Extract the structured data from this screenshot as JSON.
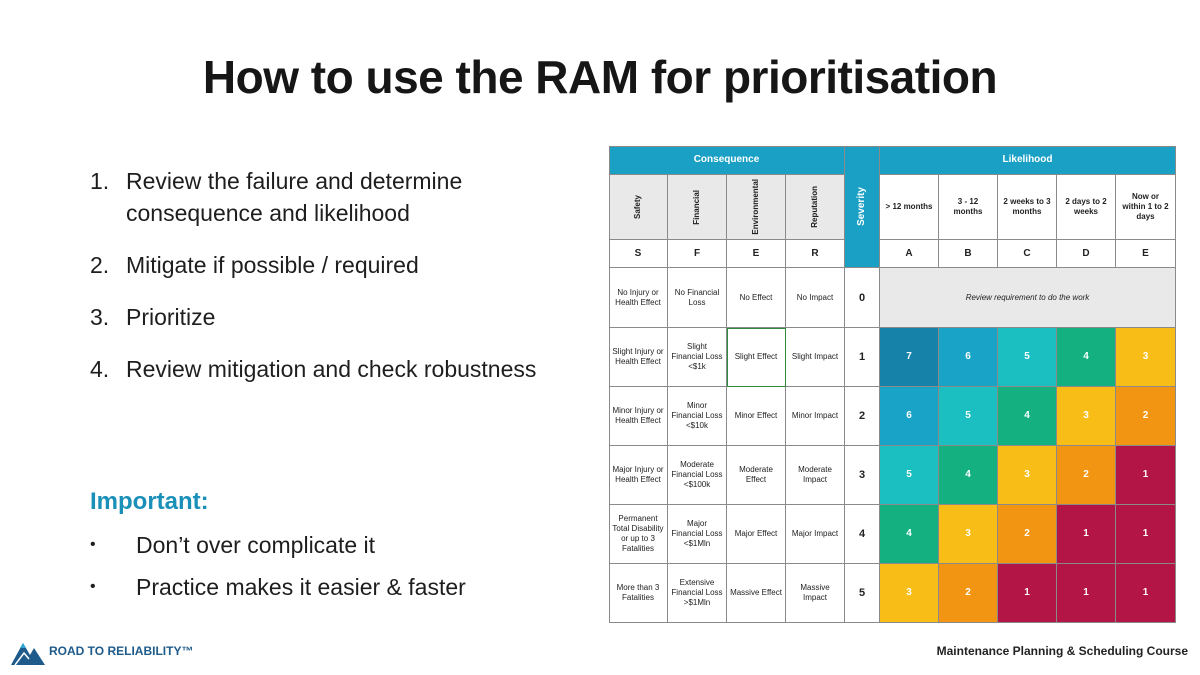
{
  "slide": {
    "title": "How to use the RAM for prioritisation",
    "steps": [
      {
        "num": "1.",
        "text": "Review the failure and determine consequence and likelihood"
      },
      {
        "num": "2.",
        "text": "Mitigate if possible / required"
      },
      {
        "num": "3.",
        "text": "Prioritize"
      },
      {
        "num": "4.",
        "text": "Review mitigation and check robustness"
      }
    ],
    "important_title": "Important:",
    "bullets": [
      {
        "dot": "•",
        "text": "Don’t over complicate it"
      },
      {
        "dot": "•",
        "text": "Practice makes it easier & faster"
      }
    ],
    "brand": "ROAD TO RELIABILITY™",
    "course": "Maintenance Planning & Scheduling Course"
  },
  "ram": {
    "consequence_header": "Consequence",
    "severity_header": "Severity",
    "likelihood_header": "Likelihood",
    "consequence_cols": [
      {
        "name": "Safety",
        "letter": "S"
      },
      {
        "name": "Financial",
        "letter": "F"
      },
      {
        "name": "Environmental",
        "letter": "E"
      },
      {
        "name": "Reputation",
        "letter": "R"
      }
    ],
    "likelihood_cols": [
      {
        "label": "> 12 months",
        "letter": "A"
      },
      {
        "label": "3 - 12 months",
        "letter": "B"
      },
      {
        "label": "2 weeks to 3 months",
        "letter": "C"
      },
      {
        "label": "2 days to 2 weeks",
        "letter": "D"
      },
      {
        "label": "Now or within 1 to 2 days",
        "letter": "E"
      }
    ],
    "review_note": "Review requirement to do the work",
    "rows": [
      {
        "severity": "0",
        "safety": "No Injury or Health Effect",
        "financial": "No Financial Loss",
        "environmental": "No Effect",
        "reputation": "No Impact",
        "ranks": []
      },
      {
        "severity": "1",
        "safety": "Slight Injury or Health Effect",
        "financial": "Slight Financial Loss <$1k",
        "environmental": "Slight Effect",
        "reputation": "Slight Impact",
        "ranks": [
          "7",
          "6",
          "5",
          "4",
          "3"
        ]
      },
      {
        "severity": "2",
        "safety": "Minor Injury or Health Effect",
        "financial": "Minor Financial Loss <$10k",
        "environmental": "Minor Effect",
        "reputation": "Minor Impact",
        "ranks": [
          "6",
          "5",
          "4",
          "3",
          "2"
        ]
      },
      {
        "severity": "3",
        "safety": "Major Injury or Health Effect",
        "financial": "Moderate Financial Loss <$100k",
        "environmental": "Moderate Effect",
        "reputation": "Moderate Impact",
        "ranks": [
          "5",
          "4",
          "3",
          "2",
          "1"
        ]
      },
      {
        "severity": "4",
        "safety": "Permanent Total Disability or up to 3 Fatalities",
        "financial": "Major Financial Loss <$1Mln",
        "environmental": "Major Effect",
        "reputation": "Major Impact",
        "ranks": [
          "4",
          "3",
          "2",
          "1",
          "1"
        ]
      },
      {
        "severity": "5",
        "safety": "More than 3 Fatalities",
        "financial": "Extensive Financial Loss >$1Mln",
        "environmental": "Massive Effect",
        "reputation": "Massive Impact",
        "ranks": [
          "3",
          "2",
          "1",
          "1",
          "1"
        ]
      }
    ],
    "colors": {
      "header": "#1aa0c4",
      "rank_7": "#1682aa",
      "rank_6": "#19a3c6",
      "rank_5": "#1bbfc2",
      "rank_4": "#15b080",
      "rank_3": "#f8bd16",
      "rank_2": "#f29512",
      "rank_1": "#b31646"
    }
  }
}
